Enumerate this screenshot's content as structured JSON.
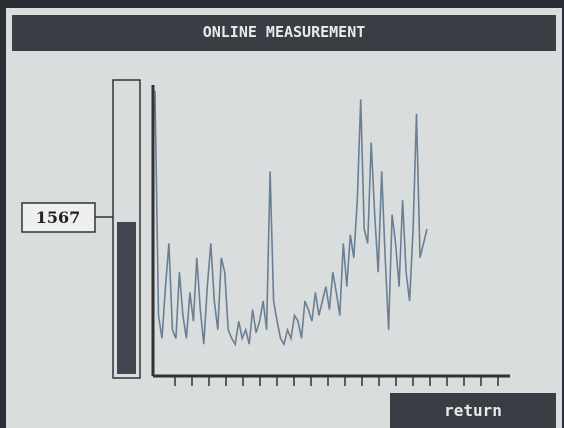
{
  "screen": {
    "title": "ONLINE MEASUREMENT",
    "readout": 1567,
    "button": "return"
  },
  "chart_data": {
    "type": "line",
    "color": "#6a7f94",
    "ylim": [
      0,
      100
    ],
    "values": [
      98,
      20,
      12,
      30,
      45,
      15,
      12,
      35,
      20,
      12,
      28,
      18,
      40,
      22,
      10,
      30,
      45,
      25,
      15,
      40,
      35,
      15,
      12,
      10,
      18,
      12,
      15,
      10,
      22,
      14,
      18,
      25,
      15,
      70,
      25,
      18,
      12,
      10,
      15,
      12,
      20,
      18,
      12,
      25,
      22,
      18,
      28,
      20,
      25,
      30,
      22,
      35,
      28,
      20,
      45,
      30,
      48,
      40,
      60,
      95,
      50,
      45,
      80,
      55,
      35,
      70,
      40,
      15,
      55,
      45,
      30,
      60,
      35,
      25,
      50,
      90,
      40,
      45,
      50
    ]
  }
}
